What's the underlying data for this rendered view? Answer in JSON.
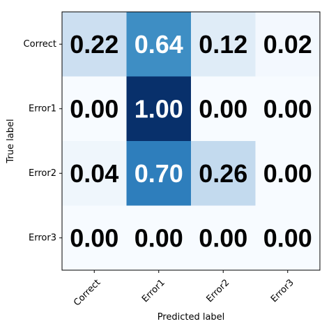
{
  "chart_data": {
    "type": "heatmap",
    "title": "",
    "xlabel": "Predicted label",
    "ylabel": "True label",
    "x_categories": [
      "Correct",
      "Error1",
      "Error2",
      "Error3"
    ],
    "y_categories": [
      "Correct",
      "Error1",
      "Error2",
      "Error3"
    ],
    "values": [
      [
        0.22,
        0.64,
        0.12,
        0.02
      ],
      [
        0.0,
        1.0,
        0.0,
        0.0
      ],
      [
        0.04,
        0.7,
        0.26,
        0.0
      ],
      [
        0.0,
        0.0,
        0.0,
        0.0
      ]
    ],
    "value_labels": [
      [
        "0.22",
        "0.64",
        "0.12",
        "0.02"
      ],
      [
        "0.00",
        "1.00",
        "0.00",
        "0.00"
      ],
      [
        "0.04",
        "0.70",
        "0.26",
        "0.00"
      ],
      [
        "0.00",
        "0.00",
        "0.00",
        "0.00"
      ]
    ],
    "colormap": "Blues",
    "vmin": 0,
    "vmax": 1,
    "colors": {
      "low": "#f7fbff",
      "high": "#08306b",
      "text_dark": "#000000",
      "text_light": "#ffffff"
    }
  }
}
